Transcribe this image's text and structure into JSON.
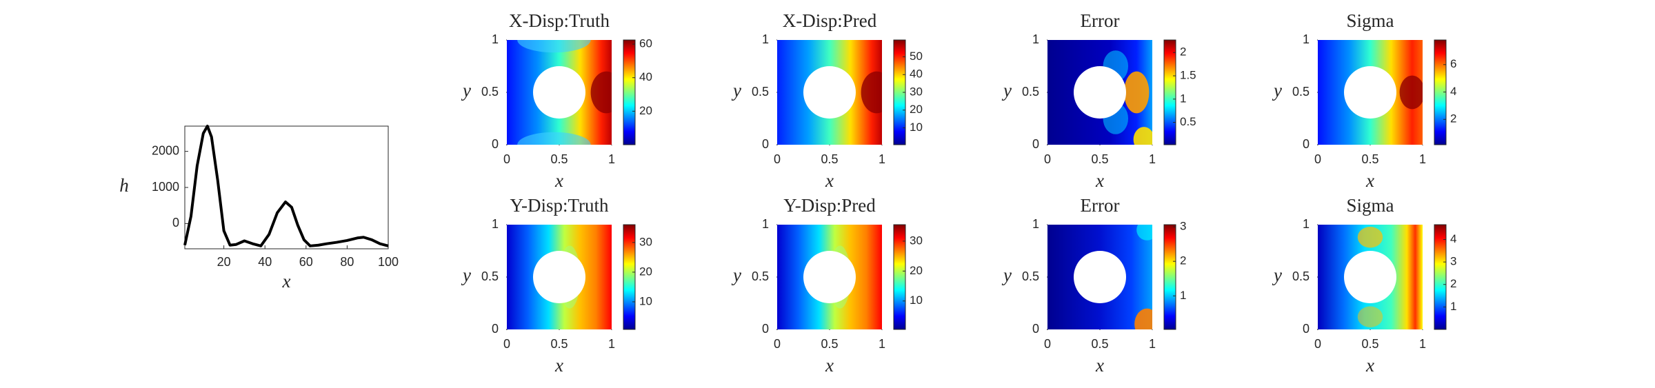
{
  "chart_data": [
    {
      "type": "line",
      "x_label": "x",
      "y_label": "h",
      "x": [
        1,
        4,
        7,
        10,
        12,
        14,
        17,
        20,
        23,
        26,
        30,
        34,
        38,
        42,
        46,
        50,
        53,
        56,
        59,
        62,
        66,
        70,
        75,
        80,
        85,
        88,
        92,
        96,
        100
      ],
      "series": [
        {
          "color": "#000000",
          "values": [
            -600,
            200,
            1600,
            2500,
            2700,
            2400,
            1200,
            -200,
            -600,
            -580,
            -480,
            -560,
            -620,
            -300,
            300,
            600,
            450,
            -50,
            -450,
            -620,
            -600,
            -560,
            -520,
            -470,
            -400,
            -380,
            -450,
            -560,
            -620
          ]
        }
      ],
      "xlim": [
        1,
        100
      ],
      "ylim": [
        -700,
        2700
      ],
      "xticks": [
        20,
        40,
        60,
        80,
        100
      ],
      "yticks": [
        0,
        1000,
        2000
      ]
    },
    {
      "type": "heatmap",
      "title": "X-Disp:Truth",
      "x_label": "x",
      "y_label": "y",
      "xlim": [
        0,
        1
      ],
      "ylim": [
        0,
        1
      ],
      "xticks": [
        0,
        0.5,
        1
      ],
      "yticks": [
        0,
        0.5,
        1
      ],
      "clim": [
        0,
        62.5
      ],
      "cticks": [
        20,
        40,
        60
      ]
    },
    {
      "type": "heatmap",
      "title": "X-Disp:Pred",
      "x_label": "x",
      "y_label": "y",
      "xlim": [
        0,
        1
      ],
      "ylim": [
        0,
        1
      ],
      "xticks": [
        0,
        0.5,
        1
      ],
      "yticks": [
        0,
        0.5,
        1
      ],
      "clim": [
        0.5,
        59.5
      ],
      "cticks": [
        10,
        20,
        30,
        40,
        50
      ]
    },
    {
      "type": "heatmap",
      "title": "Error",
      "x_label": "x",
      "y_label": "y",
      "xlim": [
        0,
        1
      ],
      "ylim": [
        0,
        1
      ],
      "xticks": [
        0,
        0.5,
        1
      ],
      "yticks": [
        0,
        0.5,
        1
      ],
      "clim": [
        0.02,
        2.27
      ],
      "cticks": [
        0.5,
        1,
        1.5,
        2
      ]
    },
    {
      "type": "heatmap",
      "title": "Sigma",
      "x_label": "x",
      "y_label": "y",
      "xlim": [
        0,
        1
      ],
      "ylim": [
        0,
        1
      ],
      "xticks": [
        0,
        0.5,
        1
      ],
      "yticks": [
        0,
        0.5,
        1
      ],
      "clim": [
        0.15,
        7.8
      ],
      "cticks": [
        2,
        4,
        6
      ]
    },
    {
      "type": "heatmap",
      "title": "Y-Disp:Truth",
      "x_label": "x",
      "y_label": "y",
      "xlim": [
        0,
        1
      ],
      "ylim": [
        0,
        1
      ],
      "xticks": [
        0,
        0.5,
        1
      ],
      "yticks": [
        0,
        0.5,
        1
      ],
      "clim": [
        0.7,
        36
      ],
      "cticks": [
        10,
        20,
        30
      ]
    },
    {
      "type": "heatmap",
      "title": "Y-Disp:Pred",
      "x_label": "x",
      "y_label": "y",
      "xlim": [
        0,
        1
      ],
      "ylim": [
        0,
        1
      ],
      "xticks": [
        0,
        0.5,
        1
      ],
      "yticks": [
        0,
        0.5,
        1
      ],
      "clim": [
        0.5,
        35.5
      ],
      "cticks": [
        10,
        20,
        30
      ]
    },
    {
      "type": "heatmap",
      "title": "Error",
      "x_label": "x",
      "y_label": "y",
      "xlim": [
        0,
        1
      ],
      "ylim": [
        0,
        1
      ],
      "xticks": [
        0,
        0.5,
        1
      ],
      "yticks": [
        0,
        0.5,
        1
      ],
      "clim": [
        0.03,
        3.06
      ],
      "cticks": [
        1,
        2,
        3
      ]
    },
    {
      "type": "heatmap",
      "title": "Sigma",
      "x_label": "x",
      "y_label": "y",
      "xlim": [
        0,
        1
      ],
      "ylim": [
        0,
        1
      ],
      "xticks": [
        0,
        0.5,
        1
      ],
      "yticks": [
        0,
        0.5,
        1
      ],
      "clim": [
        0,
        4.66
      ],
      "cticks": [
        1,
        2,
        3,
        4
      ]
    }
  ]
}
